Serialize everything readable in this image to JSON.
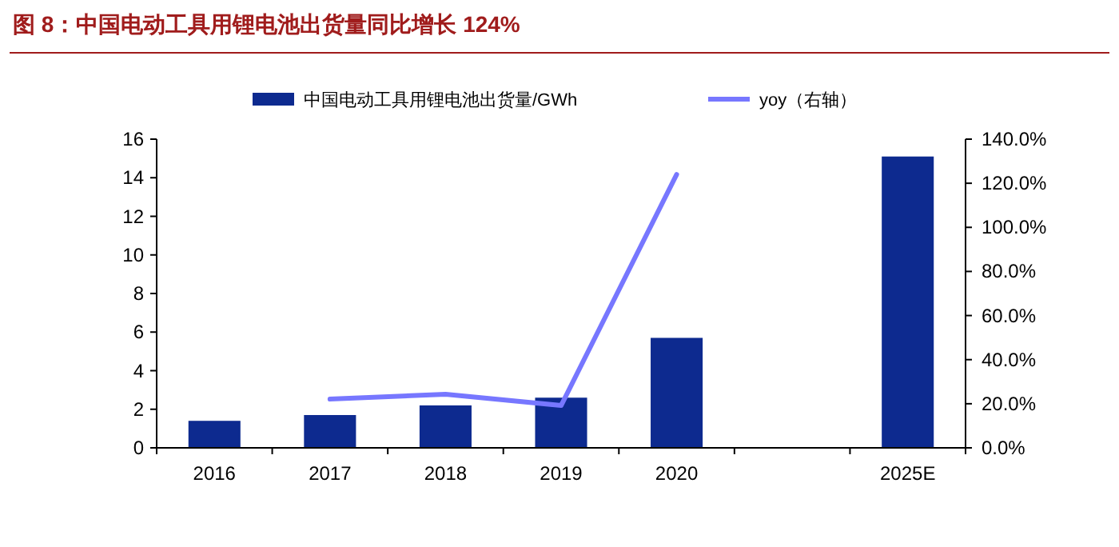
{
  "chart_data": {
    "type": "bar",
    "title": "图 8：中国电动工具用锂电池出货量同比增长 124%",
    "categories": [
      "2016",
      "2017",
      "2018",
      "2019",
      "2020",
      null,
      "2025E"
    ],
    "series": [
      {
        "name": "中国电动工具用锂电池出货量/GWh",
        "color": "#0d2a8f",
        "values": [
          1.4,
          1.7,
          2.2,
          2.6,
          5.7,
          null,
          15.1
        ]
      },
      {
        "name": "yoy（右轴）",
        "type": "line",
        "axis": "y2",
        "color": "#7777ff",
        "values": [
          null,
          22.1,
          24.3,
          19.2,
          124,
          null,
          null
        ]
      }
    ],
    "ylim": [
      0,
      16
    ],
    "yticks": [
      0,
      2,
      4,
      6,
      8,
      10,
      12,
      14,
      16
    ],
    "y2lim": [
      0,
      140
    ],
    "y2ticks": [
      {
        "value": 0,
        "label": "0.0%"
      },
      {
        "value": 20,
        "label": "20.0%"
      },
      {
        "value": 40,
        "label": "40.0%"
      },
      {
        "value": 60,
        "label": "60.0%"
      },
      {
        "value": 80,
        "label": "80.0%"
      },
      {
        "value": 100,
        "label": "100.0%"
      },
      {
        "value": 120,
        "label": "120.0%"
      },
      {
        "value": 140,
        "label": "140.0%"
      }
    ],
    "grid": false,
    "legend": "top"
  }
}
